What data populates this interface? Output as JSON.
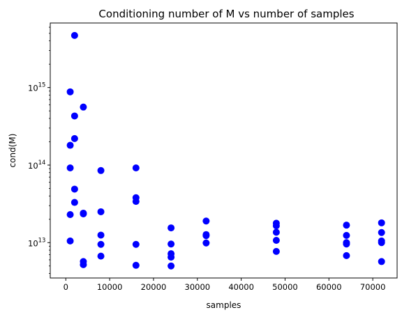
{
  "chart_data": {
    "type": "scatter",
    "title": "Conditioning number of M vs number of samples",
    "xlabel": "samples",
    "ylabel": "cond(M)",
    "xlim": [
      -3550,
      75550
    ],
    "ylim": [
      3500000000000.0,
      6800000000000000.0
    ],
    "yscale": "log",
    "grid": false,
    "marker_color": "#0000ff",
    "x_ticks": [
      0,
      10000,
      20000,
      30000,
      40000,
      50000,
      60000,
      70000
    ],
    "x_tick_labels": [
      "0",
      "10000",
      "20000",
      "30000",
      "40000",
      "50000",
      "60000",
      "70000"
    ],
    "y_ticks": [
      {
        "value": 10000000000000.0,
        "base": "10",
        "exp": "13"
      },
      {
        "value": 100000000000000.0,
        "base": "10",
        "exp": "14"
      },
      {
        "value": 1000000000000000.0,
        "base": "10",
        "exp": "15"
      }
    ],
    "series": [
      {
        "points": [
          {
            "x": 1000,
            "y": 880000000000000.0
          },
          {
            "x": 1000,
            "y": 180000000000000.0
          },
          {
            "x": 1000,
            "y": 92000000000000.0
          },
          {
            "x": 1000,
            "y": 23000000000000.0
          },
          {
            "x": 1000,
            "y": 10500000000000.0
          },
          {
            "x": 2000,
            "y": 4700000000000000.0
          },
          {
            "x": 2000,
            "y": 430000000000000.0
          },
          {
            "x": 2000,
            "y": 220000000000000.0
          },
          {
            "x": 2000,
            "y": 49000000000000.0
          },
          {
            "x": 2000,
            "y": 33000000000000.0
          },
          {
            "x": 4000,
            "y": 560000000000000.0
          },
          {
            "x": 4000,
            "y": 24000000000000.0
          },
          {
            "x": 4000,
            "y": 23500000000000.0
          },
          {
            "x": 4000,
            "y": 5700000000000.0
          },
          {
            "x": 4000,
            "y": 5200000000000.0
          },
          {
            "x": 8000,
            "y": 85000000000000.0
          },
          {
            "x": 8000,
            "y": 25000000000000.0
          },
          {
            "x": 8000,
            "y": 12500000000000.0
          },
          {
            "x": 8000,
            "y": 9500000000000.0
          },
          {
            "x": 8000,
            "y": 6700000000000.0
          },
          {
            "x": 16000,
            "y": 92000000000000.0
          },
          {
            "x": 16000,
            "y": 38000000000000.0
          },
          {
            "x": 16000,
            "y": 34000000000000.0
          },
          {
            "x": 16000,
            "y": 9500000000000.0
          },
          {
            "x": 16000,
            "y": 5100000000000.0
          },
          {
            "x": 24000,
            "y": 15500000000000.0
          },
          {
            "x": 24000,
            "y": 9600000000000.0
          },
          {
            "x": 24000,
            "y": 7200000000000.0
          },
          {
            "x": 24000,
            "y": 6500000000000.0
          },
          {
            "x": 24000,
            "y": 5000000000000.0
          },
          {
            "x": 32000,
            "y": 19000000000000.0
          },
          {
            "x": 32000,
            "y": 12700000000000.0
          },
          {
            "x": 32000,
            "y": 12300000000000.0
          },
          {
            "x": 32000,
            "y": 9900000000000.0
          },
          {
            "x": 48000,
            "y": 17800000000000.0
          },
          {
            "x": 48000,
            "y": 16500000000000.0
          },
          {
            "x": 48000,
            "y": 13600000000000.0
          },
          {
            "x": 48000,
            "y": 10700000000000.0
          },
          {
            "x": 48000,
            "y": 7700000000000.0
          },
          {
            "x": 64000,
            "y": 16800000000000.0
          },
          {
            "x": 64000,
            "y": 12400000000000.0
          },
          {
            "x": 64000,
            "y": 10000000000000.0
          },
          {
            "x": 64000,
            "y": 9600000000000.0
          },
          {
            "x": 64000,
            "y": 6800000000000.0
          },
          {
            "x": 72000,
            "y": 18000000000000.0
          },
          {
            "x": 72000,
            "y": 13500000000000.0
          },
          {
            "x": 72000,
            "y": 10500000000000.0
          },
          {
            "x": 72000,
            "y": 10000000000000.0
          },
          {
            "x": 72000,
            "y": 5700000000000.0
          }
        ]
      }
    ]
  }
}
